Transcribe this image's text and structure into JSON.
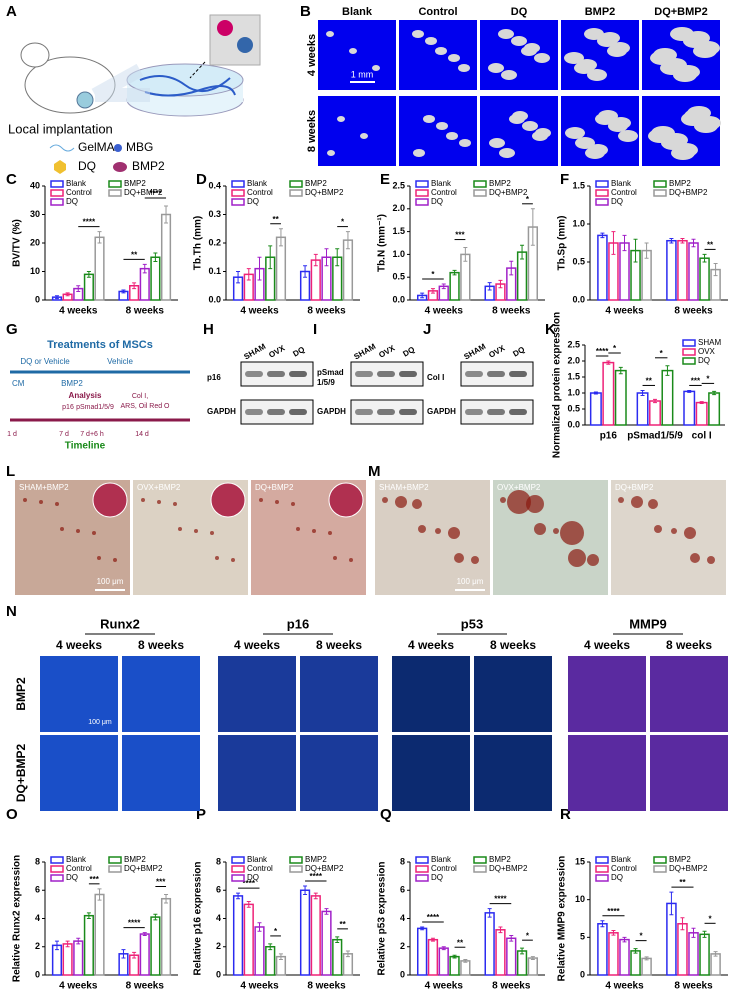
{
  "panel_labels": [
    "A",
    "B",
    "C",
    "D",
    "E",
    "F",
    "G",
    "H",
    "I",
    "J",
    "K",
    "L",
    "M",
    "N",
    "O",
    "P",
    "Q",
    "R"
  ],
  "panel_a": {
    "caption": "Local implantation",
    "legend": [
      "GelMA",
      "MBG",
      "DQ",
      "BMP2"
    ]
  },
  "panel_b": {
    "columns": [
      "Blank",
      "Control",
      "DQ",
      "BMP2",
      "DQ+BMP2"
    ],
    "rows": [
      "4 weeks",
      "8 weeks"
    ],
    "scale": "1 mm"
  },
  "panel_g": {
    "title": "Treatments of MSCs",
    "top": [
      "DQ or Vehicle",
      "Vehicle"
    ],
    "cm": "CM",
    "bmp2": "BMP2",
    "analysis": "Analysis",
    "markers": [
      "p16",
      "pSmad1/5/9",
      "Col I,",
      "ARS, Oil Red O"
    ],
    "days": [
      "1 d",
      "7 d",
      "7 d+6 h",
      "14 d"
    ],
    "timeline": "Timeline"
  },
  "blots": [
    {
      "lanes": [
        "SHAM",
        "OVX",
        "DQ"
      ],
      "target_lines": [
        "p16"
      ],
      "control": "GAPDH"
    },
    {
      "lanes": [
        "SHAM",
        "OVX",
        "DQ"
      ],
      "target_lines": [
        "pSmad",
        "1/5/9"
      ],
      "control": "GAPDH"
    },
    {
      "lanes": [
        "SHAM",
        "OVX",
        "DQ"
      ],
      "target_lines": [
        "Col I"
      ],
      "control": "GAPDH"
    }
  ],
  "panel_l": {
    "labels": [
      "SHAM+BMP2",
      "OVX+BMP2",
      "DQ+BMP2"
    ],
    "scale": "100 μm"
  },
  "panel_m": {
    "labels": [
      "SHAM+BMP2",
      "OVX+BMP2",
      "DQ+BMP2"
    ],
    "scale": "100 μm"
  },
  "panel_n": {
    "markers": [
      "Runx2",
      "p16",
      "p53",
      "MMP9"
    ],
    "columns": [
      "4 weeks",
      "8 weeks"
    ],
    "rows": [
      "BMP2",
      "DQ+BMP2"
    ],
    "scale": "100 μm"
  },
  "chart_data": [
    {
      "type": "bar",
      "y_label": "BV/TV (%)",
      "categories": [
        "4 weeks",
        "8 weeks"
      ],
      "ylim": [
        0,
        40
      ],
      "yticks": [
        0,
        10,
        20,
        30,
        40
      ],
      "series": [
        {
          "name": "Blank",
          "color": "#2b2bf0",
          "values": [
            1,
            3
          ],
          "errors": [
            0.5,
            0.5
          ]
        },
        {
          "name": "Control",
          "color": "#ee2277",
          "values": [
            2,
            5
          ],
          "errors": [
            0.5,
            1
          ]
        },
        {
          "name": "DQ",
          "color": "#a020c8",
          "values": [
            4,
            11
          ],
          "errors": [
            1,
            1.5
          ]
        },
        {
          "name": "BMP2",
          "color": "#1a8a1a",
          "values": [
            9,
            15
          ],
          "errors": [
            1,
            1.5
          ]
        },
        {
          "name": "DQ+BMP2",
          "color": "#999999",
          "values": [
            22,
            30
          ],
          "errors": [
            2,
            3
          ]
        }
      ],
      "significance": [
        {
          "label": "****",
          "category": 0,
          "from": 2,
          "to": 4
        },
        {
          "label": "**",
          "category": 1,
          "from": 0,
          "to": 2
        },
        {
          "label": "****",
          "category": 1,
          "from": 2,
          "to": 4
        }
      ]
    },
    {
      "type": "bar",
      "y_label": "Tb.Th (mm)",
      "categories": [
        "4 weeks",
        "8 weeks"
      ],
      "ylim": [
        0,
        0.4
      ],
      "yticks": [
        {
          "value": 0,
          "label": "0.0"
        },
        0.1,
        0.2,
        0.3,
        0.4
      ],
      "series": [
        {
          "name": "Blank",
          "color": "#2b2bf0",
          "values": [
            0.08,
            0.1
          ],
          "errors": [
            0.02,
            0.02
          ]
        },
        {
          "name": "Control",
          "color": "#ee2277",
          "values": [
            0.09,
            0.14
          ],
          "errors": [
            0.02,
            0.02
          ]
        },
        {
          "name": "DQ",
          "color": "#a020c8",
          "values": [
            0.11,
            0.15
          ],
          "errors": [
            0.04,
            0.03
          ]
        },
        {
          "name": "BMP2",
          "color": "#1a8a1a",
          "values": [
            0.15,
            0.15
          ],
          "errors": [
            0.04,
            0.03
          ]
        },
        {
          "name": "DQ+BMP2",
          "color": "#999999",
          "values": [
            0.22,
            0.21
          ],
          "errors": [
            0.03,
            0.03
          ]
        }
      ],
      "significance": [
        {
          "label": "**",
          "category": 0,
          "from": 3,
          "to": 4
        },
        {
          "label": "*",
          "category": 1,
          "from": 3,
          "to": 4
        }
      ]
    },
    {
      "type": "bar",
      "y_label": "Tb.N (mm⁻¹)",
      "categories": [
        "4 weeks",
        "8 weeks"
      ],
      "ylim": [
        0,
        2.5
      ],
      "yticks": [
        {
          "value": 0,
          "label": "0.0"
        },
        0.5,
        {
          "value": 1,
          "label": "1.0"
        },
        1.5,
        {
          "value": 2,
          "label": "2.0"
        },
        2.5
      ],
      "series": [
        {
          "name": "Blank",
          "color": "#2b2bf0",
          "values": [
            0.1,
            0.3
          ],
          "errors": [
            0.05,
            0.08
          ]
        },
        {
          "name": "Control",
          "color": "#ee2277",
          "values": [
            0.2,
            0.35
          ],
          "errors": [
            0.05,
            0.08
          ]
        },
        {
          "name": "DQ",
          "color": "#a020c8",
          "values": [
            0.3,
            0.7
          ],
          "errors": [
            0.05,
            0.15
          ]
        },
        {
          "name": "BMP2",
          "color": "#1a8a1a",
          "values": [
            0.6,
            1.05
          ],
          "errors": [
            0.05,
            0.15
          ]
        },
        {
          "name": "DQ+BMP2",
          "color": "#999999",
          "values": [
            1,
            1.6
          ],
          "errors": [
            0.15,
            0.4
          ]
        }
      ],
      "significance": [
        {
          "label": "*",
          "category": 0,
          "from": 0,
          "to": 2
        },
        {
          "label": "***",
          "category": 0,
          "from": 3,
          "to": 4
        },
        {
          "label": "*",
          "category": 1,
          "from": 3,
          "to": 4
        }
      ]
    },
    {
      "type": "bar",
      "y_label": "Tb.Sp (mm)",
      "categories": [
        "4 weeks",
        "8 weeks"
      ],
      "ylim": [
        0,
        1.5
      ],
      "yticks": [
        {
          "value": 0,
          "label": "0.0"
        },
        0.5,
        {
          "value": 1,
          "label": "1.0"
        },
        1.5
      ],
      "series": [
        {
          "name": "Blank",
          "color": "#2b2bf0",
          "values": [
            0.85,
            0.78
          ],
          "errors": [
            0.03,
            0.03
          ]
        },
        {
          "name": "Control",
          "color": "#ee2277",
          "values": [
            0.75,
            0.78
          ],
          "errors": [
            0.15,
            0.03
          ]
        },
        {
          "name": "DQ",
          "color": "#a020c8",
          "values": [
            0.75,
            0.75
          ],
          "errors": [
            0.1,
            0.05
          ]
        },
        {
          "name": "BMP2",
          "color": "#1a8a1a",
          "values": [
            0.65,
            0.55
          ],
          "errors": [
            0.15,
            0.05
          ]
        },
        {
          "name": "DQ+BMP2",
          "color": "#999999",
          "values": [
            0.65,
            0.4
          ],
          "errors": [
            0.1,
            0.08
          ]
        }
      ],
      "significance": [
        {
          "label": "**",
          "category": 1,
          "from": 3,
          "to": 4
        }
      ]
    },
    {
      "type": "bar",
      "y_label": "Normalized protein expression",
      "categories": [
        "p16",
        "pSmad1/5/9",
        "col I"
      ],
      "ylim": [
        0,
        2.5
      ],
      "yticks": [
        {
          "value": 0,
          "label": "0.0"
        },
        0.5,
        {
          "value": 1,
          "label": "1.0"
        },
        1.5,
        {
          "value": 2,
          "label": "2.0"
        },
        2.5
      ],
      "series": [
        {
          "name": "SHAM",
          "color": "#2b2bf0",
          "values": [
            1,
            1,
            1.05
          ],
          "errors": [
            0.03,
            0.08,
            0.03
          ]
        },
        {
          "name": "OVX",
          "color": "#ee2277",
          "values": [
            1.95,
            0.75,
            0.7
          ],
          "errors": [
            0.05,
            0.05,
            0.03
          ]
        },
        {
          "name": "DQ",
          "color": "#1a8a1a",
          "values": [
            1.7,
            1.7,
            1
          ],
          "errors": [
            0.1,
            0.15,
            0.05
          ]
        }
      ],
      "significance": [
        {
          "label": "****",
          "category": 0,
          "from": 0,
          "to": 1
        },
        {
          "label": "*",
          "category": 0,
          "from": 1,
          "to": 2
        },
        {
          "label": "**",
          "category": 1,
          "from": 0,
          "to": 1
        },
        {
          "label": "*",
          "category": 1,
          "from": 1,
          "to": 2
        },
        {
          "label": "***",
          "category": 2,
          "from": 0,
          "to": 1
        },
        {
          "label": "*",
          "category": 2,
          "from": 1,
          "to": 2
        }
      ]
    },
    {
      "type": "bar",
      "y_label": "Relative Runx2 expression",
      "categories": [
        "4 weeks",
        "8 weeks"
      ],
      "ylim": [
        0,
        8
      ],
      "yticks": [
        0,
        2,
        4,
        6,
        8
      ],
      "series": [
        {
          "name": "Blank",
          "color": "#2b2bf0",
          "values": [
            2.1,
            1.5
          ],
          "errors": [
            0.3,
            0.3
          ]
        },
        {
          "name": "Control",
          "color": "#ee2277",
          "values": [
            2.2,
            1.4
          ],
          "errors": [
            0.2,
            0.2
          ]
        },
        {
          "name": "DQ",
          "color": "#a020c8",
          "values": [
            2.4,
            2.9
          ],
          "errors": [
            0.2,
            0.1
          ]
        },
        {
          "name": "BMP2",
          "color": "#1a8a1a",
          "values": [
            4.2,
            4.1
          ],
          "errors": [
            0.2,
            0.2
          ]
        },
        {
          "name": "DQ+BMP2",
          "color": "#999999",
          "values": [
            5.7,
            5.4
          ],
          "errors": [
            0.4,
            0.3
          ]
        }
      ],
      "significance": [
        {
          "label": "***",
          "category": 0,
          "from": 3,
          "to": 4
        },
        {
          "label": "****",
          "category": 1,
          "from": 0,
          "to": 2
        },
        {
          "label": "***",
          "category": 1,
          "from": 3,
          "to": 4
        }
      ]
    },
    {
      "type": "bar",
      "y_label": "Relative p16 expression",
      "categories": [
        "4 weeks",
        "8 weeks"
      ],
      "ylim": [
        0,
        8
      ],
      "yticks": [
        0,
        2,
        4,
        6,
        8
      ],
      "series": [
        {
          "name": "Blank",
          "color": "#2b2bf0",
          "values": [
            5.6,
            6
          ],
          "errors": [
            0.2,
            0.3
          ]
        },
        {
          "name": "Control",
          "color": "#ee2277",
          "values": [
            5,
            5.6
          ],
          "errors": [
            0.2,
            0.2
          ]
        },
        {
          "name": "DQ",
          "color": "#a020c8",
          "values": [
            3.4,
            4.5
          ],
          "errors": [
            0.3,
            0.2
          ]
        },
        {
          "name": "BMP2",
          "color": "#1a8a1a",
          "values": [
            2,
            2.5
          ],
          "errors": [
            0.2,
            0.2
          ]
        },
        {
          "name": "DQ+BMP2",
          "color": "#999999",
          "values": [
            1.3,
            1.5
          ],
          "errors": [
            0.2,
            0.2
          ]
        }
      ],
      "significance": [
        {
          "label": "****",
          "category": 0,
          "from": 0,
          "to": 2
        },
        {
          "label": "*",
          "category": 0,
          "from": 3,
          "to": 4
        },
        {
          "label": "****",
          "category": 1,
          "from": 0,
          "to": 2
        },
        {
          "label": "**",
          "category": 1,
          "from": 3,
          "to": 4
        }
      ]
    },
    {
      "type": "bar",
      "y_label": "Relative p53 expression",
      "categories": [
        "4 weeks",
        "8 weeks"
      ],
      "ylim": [
        0,
        8
      ],
      "yticks": [
        0,
        2,
        4,
        6,
        8
      ],
      "series": [
        {
          "name": "Blank",
          "color": "#2b2bf0",
          "values": [
            3.3,
            4.4
          ],
          "errors": [
            0.1,
            0.3
          ]
        },
        {
          "name": "Control",
          "color": "#ee2277",
          "values": [
            2.5,
            3.2
          ],
          "errors": [
            0.1,
            0.2
          ]
        },
        {
          "name": "DQ",
          "color": "#a020c8",
          "values": [
            1.9,
            2.6
          ],
          "errors": [
            0.1,
            0.2
          ]
        },
        {
          "name": "BMP2",
          "color": "#1a8a1a",
          "values": [
            1.3,
            1.7
          ],
          "errors": [
            0.1,
            0.2
          ]
        },
        {
          "name": "DQ+BMP2",
          "color": "#999999",
          "values": [
            1,
            1.2
          ],
          "errors": [
            0.1,
            0.1
          ]
        }
      ],
      "significance": [
        {
          "label": "****",
          "category": 0,
          "from": 0,
          "to": 2
        },
        {
          "label": "**",
          "category": 0,
          "from": 3,
          "to": 4
        },
        {
          "label": "****",
          "category": 1,
          "from": 0,
          "to": 2
        },
        {
          "label": "*",
          "category": 1,
          "from": 3,
          "to": 4
        }
      ]
    },
    {
      "type": "bar",
      "y_label": "Relative MMP9 expression",
      "categories": [
        "4 weeks",
        "8 weeks"
      ],
      "ylim": [
        0,
        15
      ],
      "yticks": [
        0,
        5,
        10,
        15
      ],
      "series": [
        {
          "name": "Blank",
          "color": "#2b2bf0",
          "values": [
            6.8,
            9.5
          ],
          "errors": [
            0.4,
            1.5
          ]
        },
        {
          "name": "Control",
          "color": "#ee2277",
          "values": [
            5.6,
            6.8
          ],
          "errors": [
            0.3,
            0.8
          ]
        },
        {
          "name": "DQ",
          "color": "#a020c8",
          "values": [
            4.7,
            5.6
          ],
          "errors": [
            0.3,
            0.6
          ]
        },
        {
          "name": "BMP2",
          "color": "#1a8a1a",
          "values": [
            3.2,
            5.4
          ],
          "errors": [
            0.3,
            0.4
          ]
        },
        {
          "name": "DQ+BMP2",
          "color": "#999999",
          "values": [
            2.2,
            2.8
          ],
          "errors": [
            0.2,
            0.3
          ]
        }
      ],
      "significance": [
        {
          "label": "****",
          "category": 0,
          "from": 0,
          "to": 2
        },
        {
          "label": "*",
          "category": 0,
          "from": 3,
          "to": 4
        },
        {
          "label": "**",
          "category": 1,
          "from": 0,
          "to": 2
        },
        {
          "label": "*",
          "category": 1,
          "from": 3,
          "to": 4
        }
      ]
    }
  ]
}
